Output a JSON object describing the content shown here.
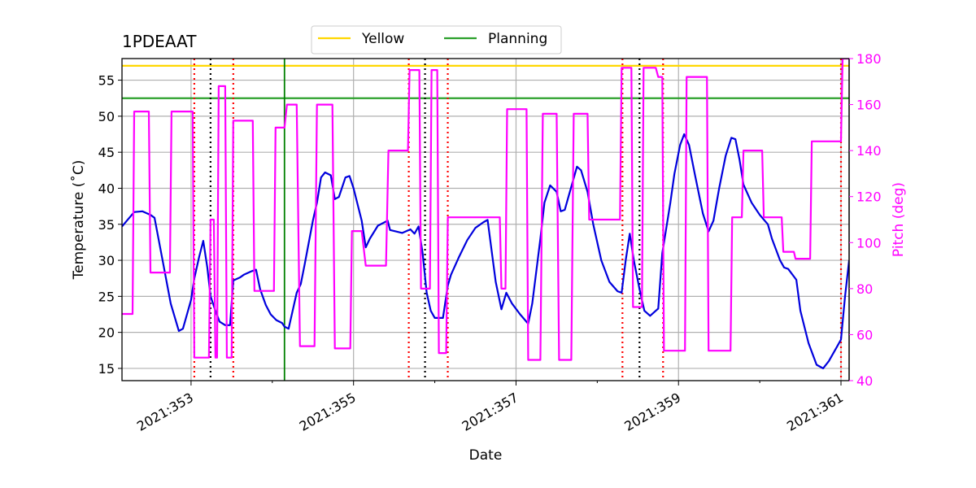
{
  "chart_data": {
    "type": "line",
    "title": "1PDEAAT",
    "xlabel": "Date",
    "ylabel": "Temperature ($^\\circ$C)",
    "ylabel_display": "Temperature (˚C)",
    "y2label": "Pitch (deg)",
    "xlim": [
      352.15,
      361.1
    ],
    "ylim": [
      13.3,
      58.0
    ],
    "y2lim": [
      40,
      180
    ],
    "x_ticks": [
      353,
      355,
      357,
      359,
      361
    ],
    "x_tick_labels": [
      "2021:353",
      "2021:355",
      "2021:357",
      "2021:359",
      "2021:361"
    ],
    "x_minor_ticks": [
      354,
      356,
      358,
      360
    ],
    "y_ticks": [
      15,
      20,
      25,
      30,
      35,
      40,
      45,
      50,
      55
    ],
    "y2_ticks": [
      40,
      60,
      80,
      100,
      120,
      140,
      160,
      180
    ],
    "grid": true,
    "legend_position": "top-center",
    "legend": [
      {
        "name": "Yellow",
        "color": "#ffd700"
      },
      {
        "name": "Planning",
        "color": "#2ca02c"
      }
    ],
    "hlines": [
      {
        "name": "Yellow",
        "y": 57.0,
        "color": "#ffd700"
      },
      {
        "name": "Planning",
        "y": 52.5,
        "color": "#2ca02c"
      }
    ],
    "vlines": [
      {
        "x": 354.15,
        "color": "#008000",
        "style": "solid"
      },
      {
        "x": 353.04,
        "color": "#ff0000",
        "style": "dotted"
      },
      {
        "x": 353.52,
        "color": "#ff0000",
        "style": "dotted"
      },
      {
        "x": 355.68,
        "color": "#ff0000",
        "style": "dotted"
      },
      {
        "x": 356.16,
        "color": "#ff0000",
        "style": "dotted"
      },
      {
        "x": 358.31,
        "color": "#ff0000",
        "style": "dotted"
      },
      {
        "x": 358.81,
        "color": "#ff0000",
        "style": "dotted"
      },
      {
        "x": 361.0,
        "color": "#ff0000",
        "style": "dotted"
      },
      {
        "x": 353.24,
        "color": "#000000",
        "style": "dotted"
      },
      {
        "x": 355.88,
        "color": "#000000",
        "style": "dotted"
      },
      {
        "x": 358.52,
        "color": "#000000",
        "style": "dotted"
      }
    ],
    "series": [
      {
        "name": "Temperature",
        "axis": "left",
        "color": "#0000dd",
        "points": [
          [
            352.15,
            34.7
          ],
          [
            352.3,
            36.7
          ],
          [
            352.4,
            36.8
          ],
          [
            352.5,
            36.3
          ],
          [
            352.55,
            35.9
          ],
          [
            352.65,
            30
          ],
          [
            352.75,
            24
          ],
          [
            352.85,
            20.2
          ],
          [
            352.9,
            20.5
          ],
          [
            352.95,
            22.5
          ],
          [
            353.0,
            24.5
          ],
          [
            353.04,
            27.5
          ],
          [
            353.1,
            30.5
          ],
          [
            353.15,
            32.7
          ],
          [
            353.2,
            29
          ],
          [
            353.24,
            25
          ],
          [
            353.3,
            23
          ],
          [
            353.35,
            21.5
          ],
          [
            353.42,
            21
          ],
          [
            353.48,
            21
          ],
          [
            353.52,
            27.2
          ],
          [
            353.6,
            27.6
          ],
          [
            353.65,
            28
          ],
          [
            353.75,
            28.5
          ],
          [
            353.8,
            28.7
          ],
          [
            353.85,
            26
          ],
          [
            353.92,
            23.8
          ],
          [
            353.98,
            22.5
          ],
          [
            354.05,
            21.7
          ],
          [
            354.12,
            21.3
          ],
          [
            354.15,
            20.8
          ],
          [
            354.2,
            20.5
          ],
          [
            354.25,
            23
          ],
          [
            354.3,
            25.5
          ],
          [
            354.35,
            26.7
          ],
          [
            354.4,
            29.5
          ],
          [
            354.5,
            35.5
          ],
          [
            354.55,
            38
          ],
          [
            354.6,
            41.5
          ],
          [
            354.65,
            42.2
          ],
          [
            354.72,
            41.8
          ],
          [
            354.77,
            38.5
          ],
          [
            354.82,
            38.8
          ],
          [
            354.9,
            41.5
          ],
          [
            354.95,
            41.7
          ],
          [
            355.0,
            40
          ],
          [
            355.1,
            35.5
          ],
          [
            355.15,
            31.8
          ],
          [
            355.2,
            33
          ],
          [
            355.3,
            34.8
          ],
          [
            355.42,
            35.5
          ],
          [
            355.45,
            34.2
          ],
          [
            355.6,
            33.8
          ],
          [
            355.7,
            34.3
          ],
          [
            355.75,
            33.7
          ],
          [
            355.8,
            34.7
          ],
          [
            355.85,
            31
          ],
          [
            355.9,
            25.5
          ],
          [
            355.95,
            23
          ],
          [
            356.0,
            22
          ],
          [
            356.1,
            22
          ],
          [
            356.16,
            26.5
          ],
          [
            356.2,
            28
          ],
          [
            356.3,
            30.5
          ],
          [
            356.4,
            32.8
          ],
          [
            356.5,
            34.5
          ],
          [
            356.6,
            35.3
          ],
          [
            356.65,
            35.6
          ],
          [
            356.75,
            27
          ],
          [
            356.82,
            23.2
          ],
          [
            356.88,
            25.5
          ],
          [
            356.95,
            24
          ],
          [
            357.05,
            22.5
          ],
          [
            357.15,
            21.2
          ],
          [
            357.2,
            24
          ],
          [
            357.3,
            33
          ],
          [
            357.35,
            38
          ],
          [
            357.42,
            40.4
          ],
          [
            357.5,
            39.5
          ],
          [
            357.55,
            36.8
          ],
          [
            357.6,
            37
          ],
          [
            357.7,
            41
          ],
          [
            357.75,
            43
          ],
          [
            357.8,
            42.5
          ],
          [
            357.88,
            39.5
          ],
          [
            357.95,
            35
          ],
          [
            358.05,
            30
          ],
          [
            358.15,
            27
          ],
          [
            358.25,
            25.7
          ],
          [
            358.3,
            25.5
          ],
          [
            358.35,
            30
          ],
          [
            358.4,
            33.7
          ],
          [
            358.45,
            30
          ],
          [
            358.52,
            26
          ],
          [
            358.58,
            23
          ],
          [
            358.65,
            22.3
          ],
          [
            358.72,
            23
          ],
          [
            358.75,
            23.3
          ],
          [
            358.8,
            31
          ],
          [
            358.9,
            38
          ],
          [
            358.95,
            42
          ],
          [
            359.02,
            46
          ],
          [
            359.07,
            47.5
          ],
          [
            359.13,
            46
          ],
          [
            359.2,
            42
          ],
          [
            359.3,
            36.5
          ],
          [
            359.37,
            34
          ],
          [
            359.43,
            35.5
          ],
          [
            359.5,
            40
          ],
          [
            359.58,
            44.5
          ],
          [
            359.65,
            47
          ],
          [
            359.7,
            46.8
          ],
          [
            359.75,
            44
          ],
          [
            359.8,
            40.5
          ],
          [
            359.9,
            38
          ],
          [
            360.0,
            36.3
          ],
          [
            360.1,
            35
          ],
          [
            360.15,
            33
          ],
          [
            360.25,
            30
          ],
          [
            360.3,
            29
          ],
          [
            360.35,
            28.8
          ],
          [
            360.45,
            27.3
          ],
          [
            360.5,
            23
          ],
          [
            360.6,
            18.5
          ],
          [
            360.7,
            15.5
          ],
          [
            360.78,
            15
          ],
          [
            360.85,
            16
          ],
          [
            360.95,
            18
          ],
          [
            361.0,
            19
          ],
          [
            361.05,
            25
          ],
          [
            361.1,
            30
          ]
        ]
      },
      {
        "name": "Pitch",
        "axis": "right",
        "color": "#ff00ff",
        "points": [
          [
            352.15,
            69
          ],
          [
            352.28,
            69
          ],
          [
            352.3,
            157
          ],
          [
            352.48,
            157
          ],
          [
            352.5,
            87
          ],
          [
            352.74,
            87
          ],
          [
            352.76,
            157
          ],
          [
            353.02,
            157
          ],
          [
            353.04,
            50
          ],
          [
            353.22,
            50
          ],
          [
            353.24,
            110
          ],
          [
            353.28,
            110
          ],
          [
            353.3,
            50
          ],
          [
            353.32,
            50
          ],
          [
            353.34,
            168
          ],
          [
            353.42,
            168
          ],
          [
            353.44,
            50
          ],
          [
            353.5,
            50
          ],
          [
            353.52,
            153
          ],
          [
            353.76,
            153
          ],
          [
            353.78,
            79
          ],
          [
            354.02,
            79
          ],
          [
            354.04,
            150
          ],
          [
            354.15,
            150
          ],
          [
            354.18,
            160
          ],
          [
            354.3,
            160
          ],
          [
            354.34,
            55
          ],
          [
            354.52,
            55
          ],
          [
            354.55,
            160
          ],
          [
            354.74,
            160
          ],
          [
            354.77,
            54
          ],
          [
            354.96,
            54
          ],
          [
            354.98,
            105
          ],
          [
            355.1,
            105
          ],
          [
            355.15,
            90
          ],
          [
            355.4,
            90
          ],
          [
            355.43,
            140
          ],
          [
            355.67,
            140
          ],
          [
            355.69,
            175
          ],
          [
            355.81,
            175
          ],
          [
            355.83,
            80
          ],
          [
            355.94,
            80
          ],
          [
            355.96,
            175
          ],
          [
            356.03,
            175
          ],
          [
            356.05,
            52
          ],
          [
            356.14,
            52
          ],
          [
            356.16,
            111
          ],
          [
            356.62,
            111
          ],
          [
            356.65,
            111
          ],
          [
            356.8,
            111
          ],
          [
            356.82,
            80
          ],
          [
            356.87,
            80
          ],
          [
            356.89,
            158
          ],
          [
            357.13,
            158
          ],
          [
            357.15,
            49
          ],
          [
            357.3,
            49
          ],
          [
            357.33,
            156
          ],
          [
            357.5,
            156
          ],
          [
            357.53,
            49
          ],
          [
            357.68,
            49
          ],
          [
            357.71,
            156
          ],
          [
            357.88,
            156
          ],
          [
            357.9,
            110
          ],
          [
            358.28,
            110
          ],
          [
            358.3,
            176
          ],
          [
            358.42,
            176
          ],
          [
            358.44,
            72
          ],
          [
            358.55,
            72
          ],
          [
            358.57,
            176
          ],
          [
            358.72,
            176
          ],
          [
            358.75,
            172
          ],
          [
            358.8,
            172
          ],
          [
            358.82,
            53
          ],
          [
            359.08,
            53
          ],
          [
            359.1,
            172
          ],
          [
            359.35,
            172
          ],
          [
            359.37,
            53
          ],
          [
            359.64,
            53
          ],
          [
            359.66,
            111
          ],
          [
            359.78,
            111
          ],
          [
            359.8,
            140
          ],
          [
            360.03,
            140
          ],
          [
            360.05,
            111
          ],
          [
            360.27,
            111
          ],
          [
            360.29,
            96
          ],
          [
            360.42,
            96
          ],
          [
            360.44,
            93
          ],
          [
            360.62,
            93
          ],
          [
            360.64,
            144
          ],
          [
            361.0,
            144
          ],
          [
            361.02,
            180
          ],
          [
            361.1,
            180
          ]
        ]
      }
    ]
  }
}
